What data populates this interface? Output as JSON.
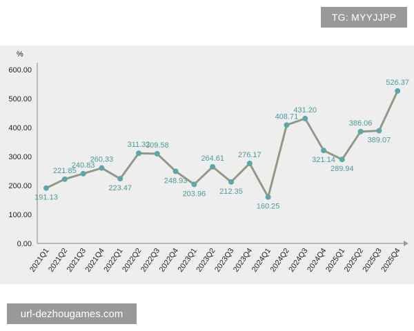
{
  "overlay": {
    "tag_text": "TG: MYYJJPP",
    "watermark_text": "url-dezhougames.com"
  },
  "chart_data": {
    "type": "line",
    "unit_label": "%",
    "ylim": [
      0,
      600
    ],
    "ytick_labels": [
      "600.00",
      "500.00",
      "400.00",
      "300.00",
      "200.00",
      "100.00",
      "0.00"
    ],
    "yticks": [
      600,
      500,
      400,
      300,
      200,
      100,
      0
    ],
    "categories": [
      "2021Q1",
      "2021Q2",
      "2021Q3",
      "2021Q4",
      "2022Q1",
      "2022Q2",
      "2022Q3",
      "2022Q4",
      "2023Q1",
      "2023Q2",
      "2023Q3",
      "2023Q4",
      "2024Q1",
      "2024Q2",
      "2024Q3",
      "2024Q4",
      "2025Q1",
      "2025Q2",
      "2025Q3",
      "2025Q4"
    ],
    "values": [
      191.13,
      221.85,
      240.83,
      260.33,
      223.47,
      311.32,
      309.58,
      248.93,
      203.96,
      264.61,
      212.35,
      276.17,
      160.25,
      408.71,
      431.2,
      321.14,
      289.94,
      386.06,
      389.07,
      526.37
    ],
    "value_labels": [
      "191.13",
      "221.85",
      "240.83",
      "260.33",
      "223.47",
      "311.32",
      "309.58",
      "248.93",
      "203.96",
      "264.61",
      "212.35",
      "276.17",
      "160.25",
      "408.71",
      "431.20",
      "321.14",
      "289.94",
      "386.06",
      "389.07",
      "526.37"
    ],
    "label_positions": [
      "below",
      "above",
      "above",
      "above",
      "below",
      "above",
      "above",
      "below",
      "below",
      "above",
      "below",
      "above",
      "below",
      "above",
      "above",
      "below",
      "below",
      "above",
      "below",
      "above"
    ],
    "grid": false,
    "colors": {
      "line": "#8f9983",
      "marker": "#5aa8a8",
      "label": "#4a9a9a",
      "axis": "#999999",
      "panel": "#eeeeee"
    }
  }
}
